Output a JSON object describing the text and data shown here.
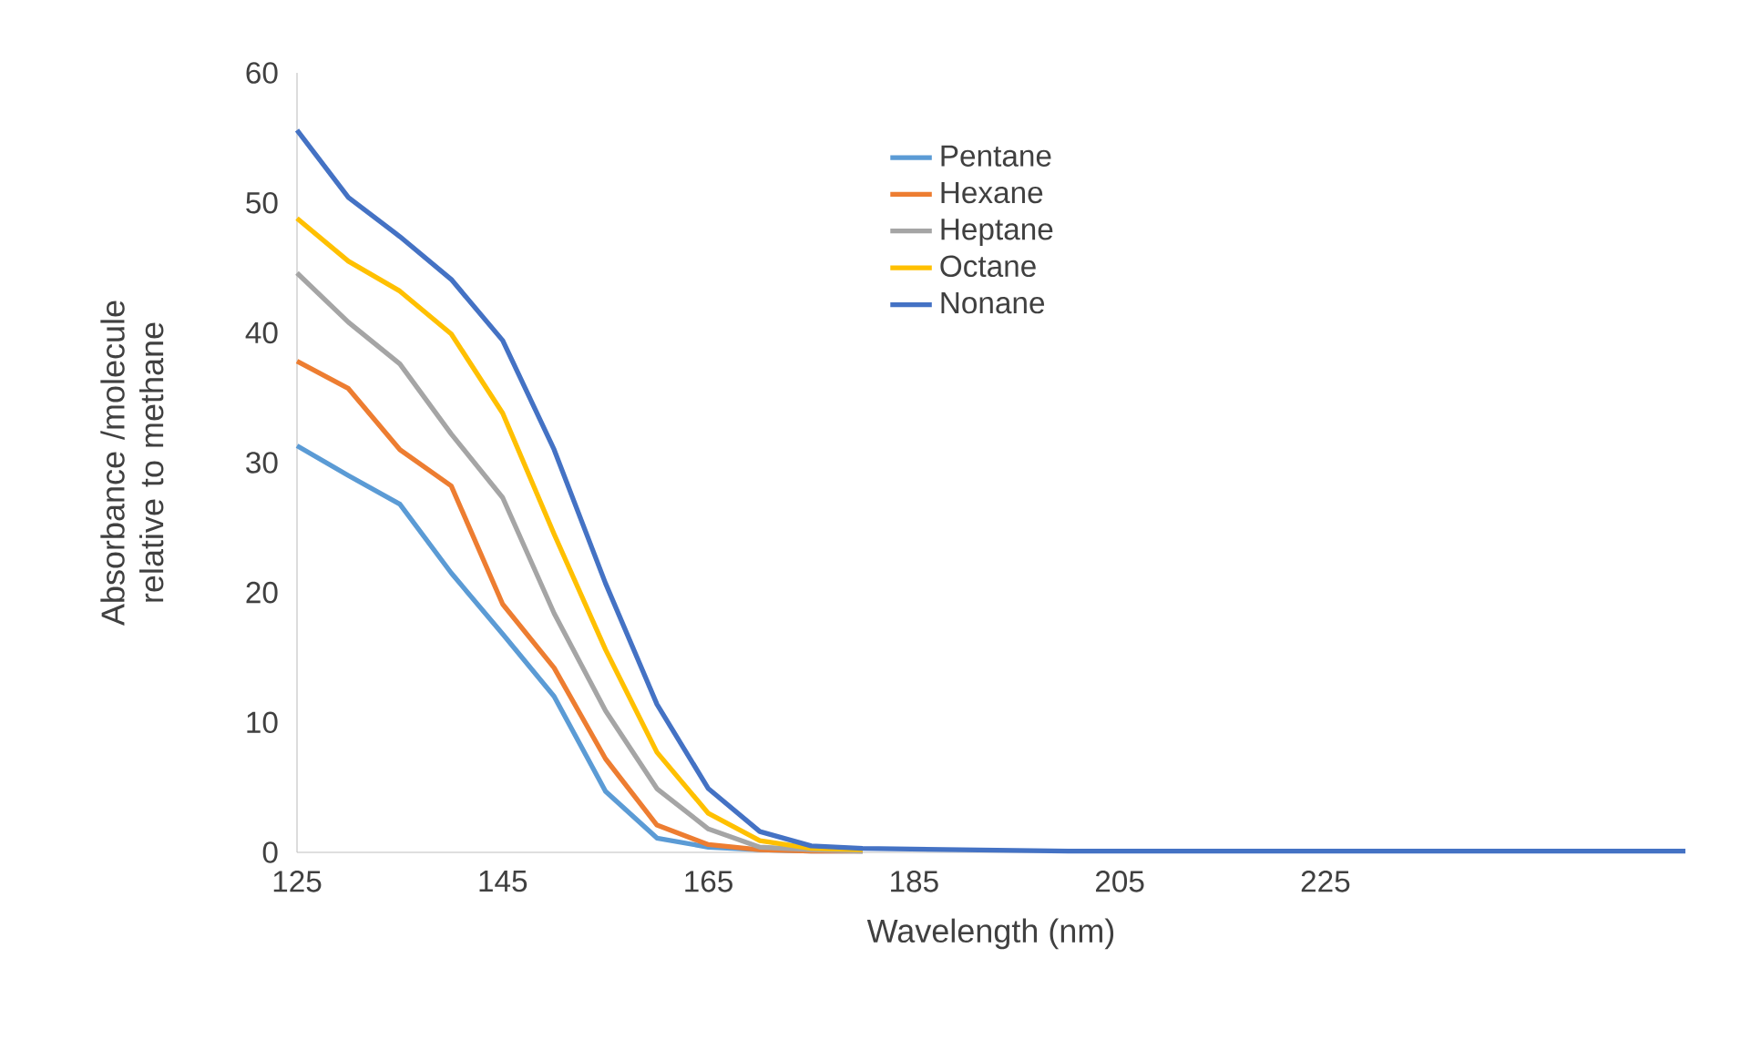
{
  "chart_data": {
    "type": "line",
    "xlabel": "Wavelength (nm)",
    "ylabel": "Absorbance /molecule relative to methane",
    "x": [
      125,
      130,
      135,
      140,
      145,
      150,
      155,
      160,
      165,
      170,
      175,
      180,
      200,
      225,
      260
    ],
    "series": [
      {
        "name": "Pentane",
        "color": "#5b9bd5",
        "values": [
          31.3,
          29.0,
          26.8,
          21.5,
          16.8,
          12.0,
          4.7,
          1.1,
          0.4,
          0.2,
          0.1,
          0.1,
          null,
          null,
          null
        ]
      },
      {
        "name": "Hexane",
        "color": "#ed7d31",
        "values": [
          37.8,
          35.7,
          31.0,
          28.2,
          19.1,
          14.2,
          7.2,
          2.1,
          0.6,
          0.2,
          0.1,
          0.1,
          null,
          null,
          null
        ]
      },
      {
        "name": "Heptane",
        "color": "#a5a5a5",
        "values": [
          44.6,
          40.8,
          37.6,
          32.2,
          27.3,
          18.4,
          10.9,
          4.9,
          1.8,
          0.4,
          0.2,
          0.1,
          null,
          null,
          null
        ]
      },
      {
        "name": "Octane",
        "color": "#ffc000",
        "values": [
          48.8,
          45.5,
          43.2,
          39.9,
          33.8,
          24.5,
          15.6,
          7.7,
          3.0,
          0.9,
          0.3,
          0.2,
          null,
          null,
          null
        ]
      },
      {
        "name": "Nonane",
        "color": "#4472c4",
        "values": [
          55.6,
          50.4,
          47.4,
          44.1,
          39.4,
          31.0,
          20.7,
          11.4,
          4.9,
          1.6,
          0.5,
          0.3,
          0.1,
          0.1,
          0.1
        ]
      }
    ],
    "xlim": [
      125,
      260
    ],
    "ylim": [
      0,
      60
    ],
    "xticks": [
      125,
      145,
      165,
      185,
      205,
      225
    ],
    "yticks": [
      0,
      10,
      20,
      30,
      40,
      50,
      60
    ],
    "legend": "top",
    "grid": false,
    "marker": "none",
    "line_style": "solid"
  }
}
